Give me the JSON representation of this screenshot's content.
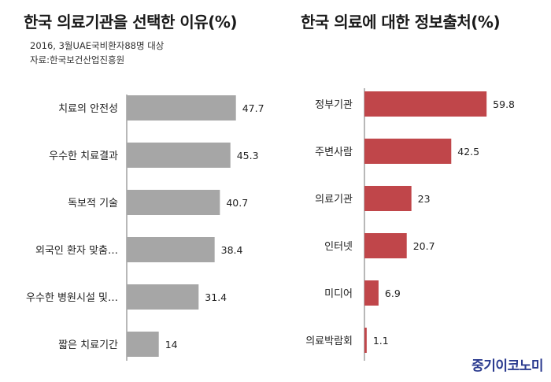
{
  "chart_data": [
    {
      "type": "bar",
      "orientation": "horizontal",
      "title": "한국 의료기관을 선택한 이유(%)",
      "notes": [
        "2016, 3월UAE국비환자88명 대상",
        "자료:한국보건산업진흥원"
      ],
      "categories": [
        "치료의 안전성",
        "우수한 치료결과",
        "독보적 기술",
        "외국인 환자 맞춤…",
        "우수한 병원시설 및…",
        "짧은 치료기간"
      ],
      "values": [
        47.7,
        45.3,
        40.7,
        38.4,
        31.4,
        14
      ],
      "data_labels": [
        "47.7",
        "45.3",
        "40.7",
        "38.4",
        "31.4",
        "14"
      ],
      "xlim": [
        0,
        60
      ],
      "color": "#a6a6a6",
      "grid": false
    },
    {
      "type": "bar",
      "orientation": "horizontal",
      "title": "한국 의료에 대한 정보출처(%)",
      "categories": [
        "정부기관",
        "주변사람",
        "의료기관",
        "인터넷",
        "미디어",
        "의료박람회"
      ],
      "values": [
        59.8,
        42.5,
        23,
        20.7,
        6.9,
        1.1
      ],
      "data_labels": [
        "59.8",
        "42.5",
        "23",
        "20.7",
        "6.9",
        "1.1"
      ],
      "xlim": [
        0,
        60
      ],
      "color": "#c0464a",
      "grid": false
    }
  ],
  "brand": "중기이코노미"
}
